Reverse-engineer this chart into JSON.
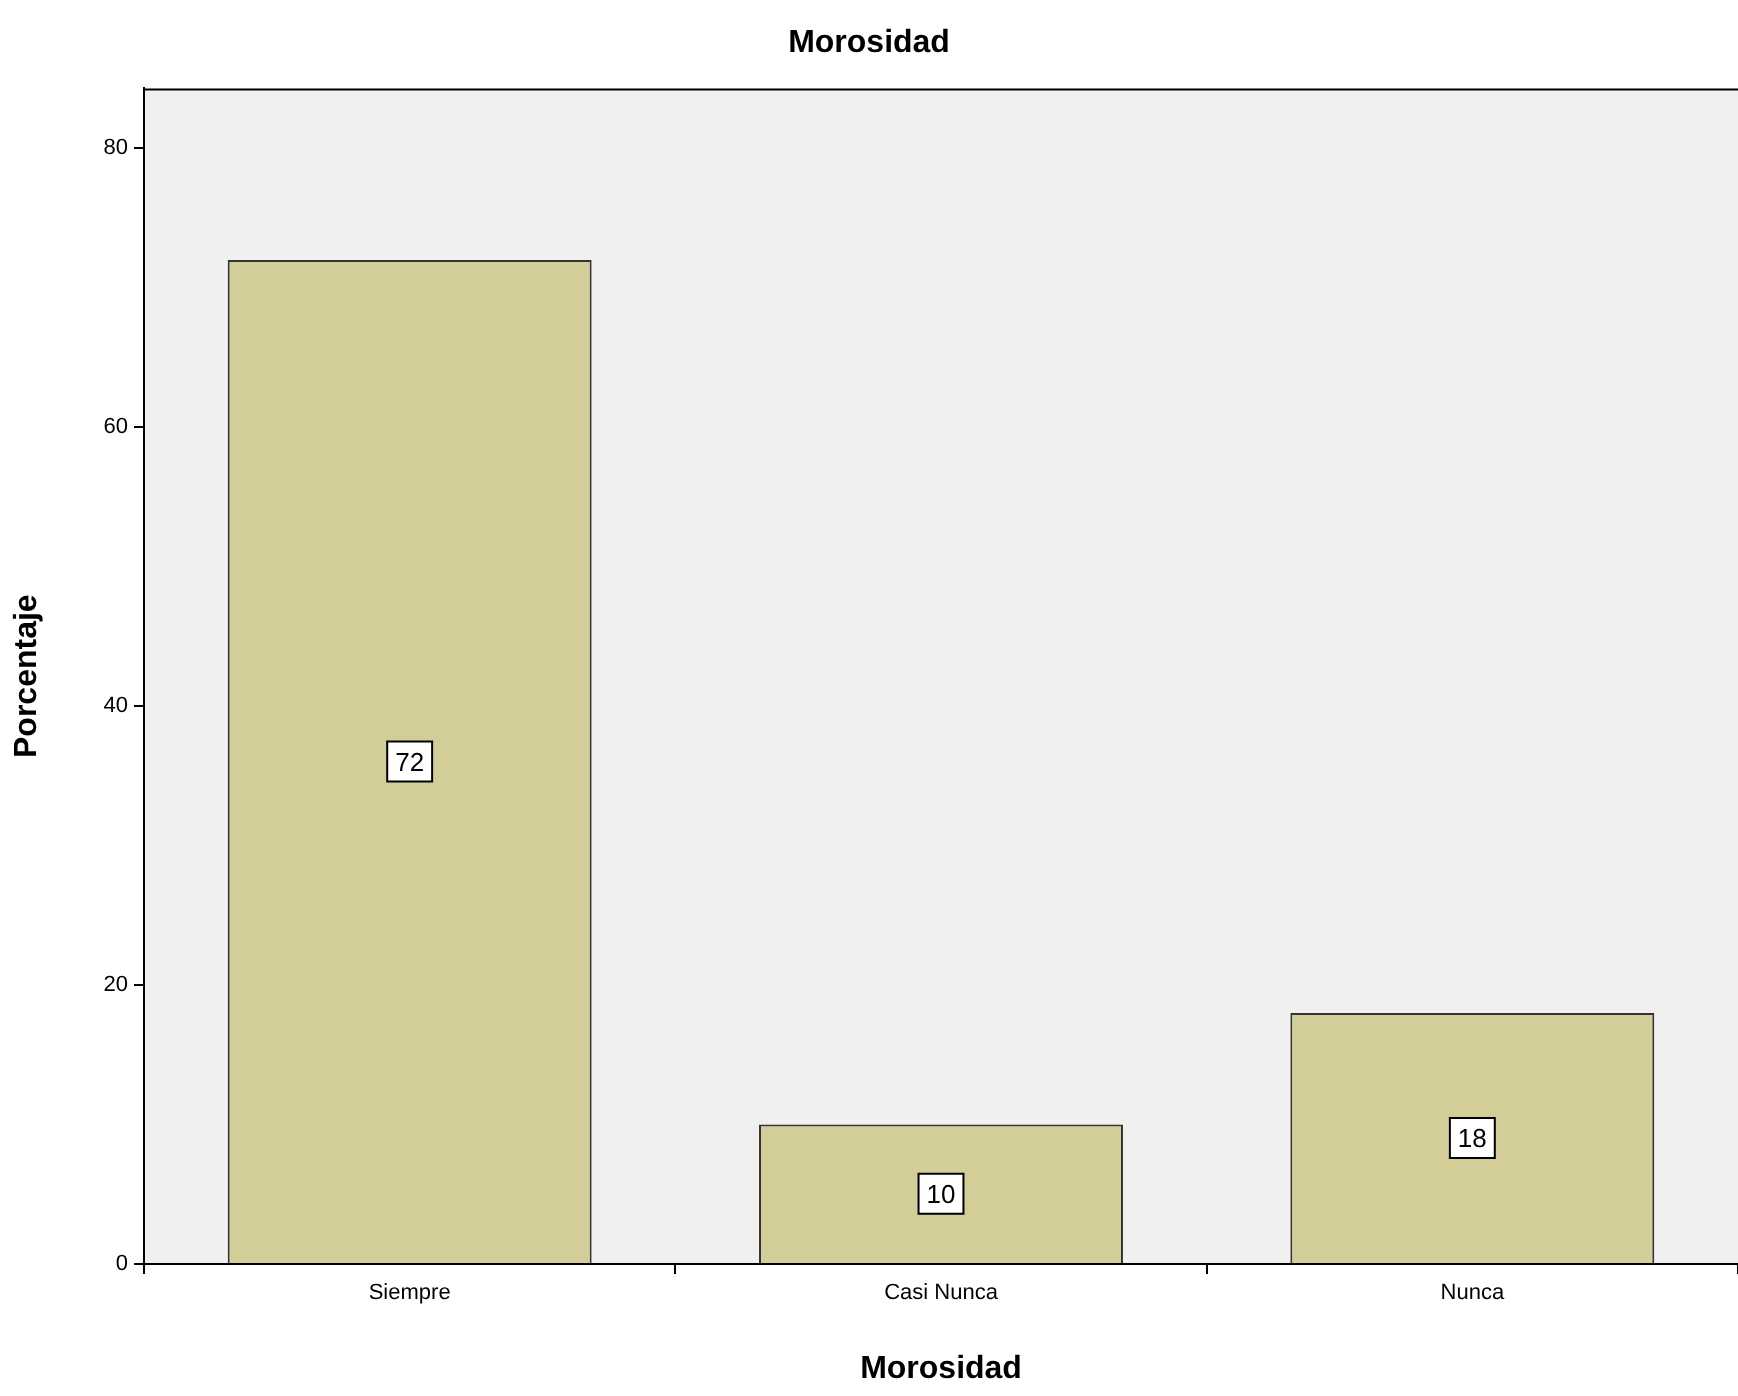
{
  "chart_data": {
    "type": "bar",
    "title": "Morosidad",
    "xlabel": "Morosidad",
    "ylabel": "Porcentaje",
    "categories": [
      "Siempre",
      "Casi Nunca",
      "Nunca"
    ],
    "values": [
      72,
      10,
      18
    ],
    "color": "#d3ce97",
    "ylim": [
      0,
      84.3
    ],
    "yticks": [
      0,
      20,
      40,
      60,
      80
    ],
    "grid": false,
    "legend": false,
    "data_labels": true
  }
}
